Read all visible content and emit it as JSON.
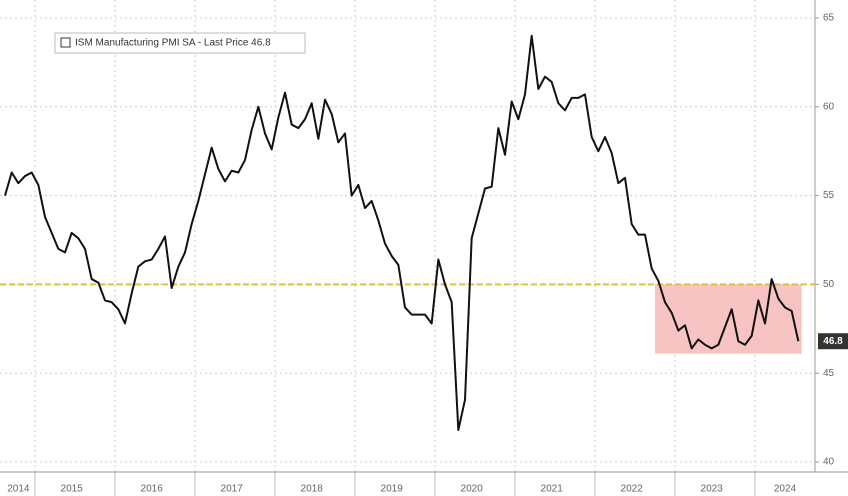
{
  "chart_data": {
    "type": "line",
    "categories": [
      null,
      null,
      "2014",
      null,
      null,
      null,
      null,
      null,
      null,
      null,
      "2015",
      null,
      null,
      null,
      null,
      null,
      null,
      null,
      null,
      null,
      null,
      null,
      "2016",
      null,
      null,
      null,
      null,
      null,
      null,
      null,
      null,
      null,
      null,
      null,
      "2017",
      null,
      null,
      null,
      null,
      null,
      null,
      null,
      null,
      null,
      null,
      null,
      "2018",
      null,
      null,
      null,
      null,
      null,
      null,
      null,
      null,
      null,
      null,
      null,
      "2019",
      null,
      null,
      null,
      null,
      null,
      null,
      null,
      null,
      null,
      null,
      null,
      "2020",
      null,
      null,
      null,
      null,
      null,
      null,
      null,
      null,
      null,
      null,
      null,
      "2021",
      null,
      null,
      null,
      null,
      null,
      null,
      null,
      null,
      null,
      null,
      null,
      "2022",
      null,
      null,
      null,
      null,
      null,
      null,
      null,
      null,
      null,
      null,
      null,
      "2023",
      null,
      null,
      null,
      null,
      null,
      null,
      null,
      null,
      null,
      null,
      "2024",
      null,
      null
    ],
    "series": [
      {
        "name": "ISM Manufacturing PMI SA - Last Price 46.8",
        "color": "#111111",
        "values": [
          55.0,
          56.3,
          55.7,
          56.1,
          56.3,
          55.6,
          53.8,
          52.9,
          52.0,
          51.8,
          52.9,
          52.6,
          52.0,
          50.3,
          50.1,
          49.1,
          49.0,
          48.6,
          47.8,
          49.5,
          51.0,
          51.3,
          51.4,
          52.0,
          52.7,
          49.8,
          51.0,
          51.8,
          53.4,
          54.7,
          56.2,
          57.7,
          56.5,
          55.8,
          56.4,
          56.3,
          57.0,
          58.7,
          60.0,
          58.5,
          57.6,
          59.4,
          60.8,
          59.0,
          58.8,
          59.3,
          60.2,
          58.2,
          60.4,
          59.6,
          58.0,
          58.5,
          55.0,
          55.6,
          54.3,
          54.7,
          53.6,
          52.3,
          51.6,
          51.1,
          48.7,
          48.3,
          48.3,
          48.3,
          47.8,
          51.4,
          50.0,
          49.0,
          41.8,
          43.5,
          52.6,
          54.0,
          55.4,
          55.5,
          58.8,
          57.3,
          60.3,
          59.3,
          60.7,
          64.0,
          61.0,
          61.7,
          61.4,
          60.2,
          59.8,
          60.5,
          60.5,
          60.7,
          58.3,
          57.5,
          58.3,
          57.4,
          55.7,
          56.0,
          53.4,
          52.8,
          52.8,
          50.9,
          50.2,
          49.0,
          48.4,
          47.4,
          47.7,
          46.4,
          46.9,
          46.6,
          46.4,
          46.6,
          47.6,
          48.6,
          46.8,
          46.6,
          47.1,
          49.1,
          47.8,
          50.3,
          49.2,
          48.7,
          48.5,
          46.8
        ]
      }
    ],
    "ylim": [
      40,
      65
    ],
    "yticks": [
      40,
      45,
      50,
      55,
      60,
      65
    ],
    "grid": true,
    "reference_line": {
      "value": 50,
      "color": "#e0c040"
    },
    "highlight": {
      "start_index": 98,
      "end_index": 120,
      "y_range": [
        46.1,
        50
      ],
      "color": "#f6b8b8"
    },
    "legend": "top-left"
  }
}
